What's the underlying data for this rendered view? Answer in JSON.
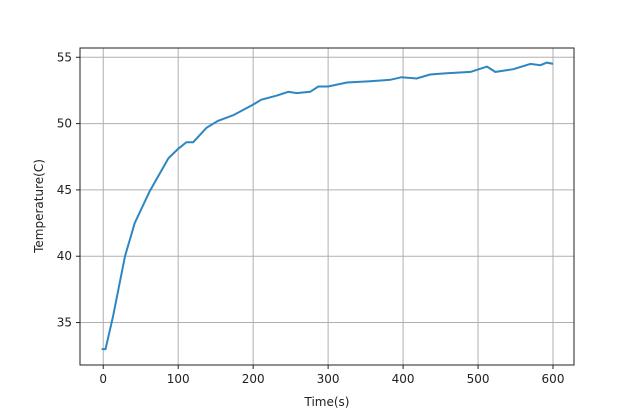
{
  "chart_data": {
    "type": "line",
    "title": "",
    "xlabel": "Time(s)",
    "ylabel": "Temperature(C)",
    "xlim": [
      -31,
      628
    ],
    "ylim": [
      31.8,
      55.7
    ],
    "xticks": [
      0,
      100,
      200,
      300,
      400,
      500,
      600
    ],
    "yticks": [
      35,
      40,
      45,
      50,
      55
    ],
    "grid": true,
    "line_color": "#2e86c1",
    "series": [
      {
        "x": [
          -2,
          3,
          13,
          29,
          42,
          62,
          87,
          100,
          111,
          120,
          138,
          153,
          174,
          199,
          211,
          231,
          247,
          258,
          276,
          287,
          300,
          325,
          356,
          383,
          398,
          418,
          436,
          458,
          490,
          512,
          523,
          547,
          570,
          583,
          592,
          600
        ],
        "y": [
          33.0,
          33.0,
          35.45,
          40.0,
          42.5,
          44.9,
          47.4,
          48.1,
          48.6,
          48.6,
          49.7,
          50.2,
          50.65,
          51.4,
          51.8,
          52.1,
          52.4,
          52.3,
          52.4,
          52.8,
          52.8,
          53.1,
          53.2,
          53.3,
          53.5,
          53.4,
          53.7,
          53.8,
          53.9,
          54.3,
          53.9,
          54.1,
          54.5,
          54.4,
          54.6,
          54.5
        ]
      }
    ]
  }
}
